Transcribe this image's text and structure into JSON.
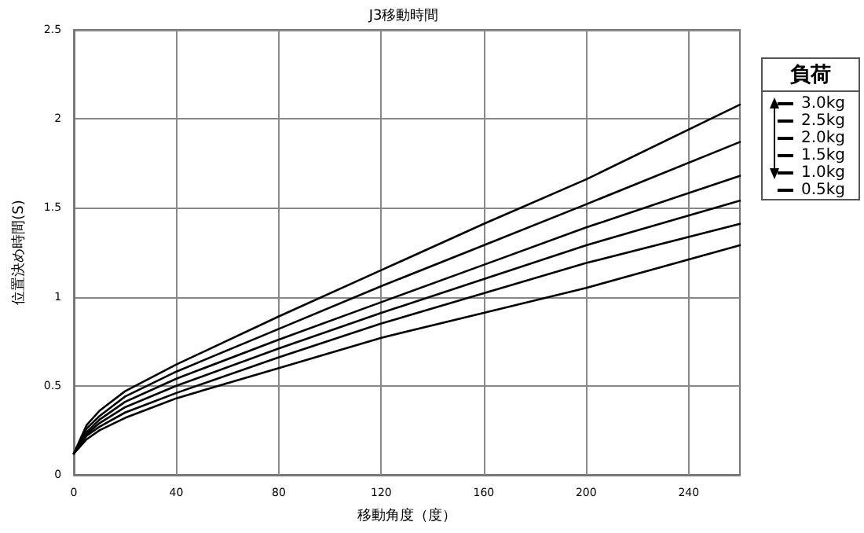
{
  "chart_data": {
    "type": "line",
    "title": "J3移動時間",
    "xlabel": "移動角度（度）",
    "ylabel": "位置決め時間(S)",
    "legend_title": "負荷",
    "x": [
      0,
      5,
      10,
      20,
      40,
      80,
      120,
      160,
      200,
      260
    ],
    "series": [
      {
        "name": "3.0kg",
        "color": "#000000",
        "values": [
          0.12,
          0.28,
          0.36,
          0.47,
          0.62,
          0.89,
          1.15,
          1.41,
          1.66,
          2.08
        ]
      },
      {
        "name": "2.5kg",
        "color": "#000000",
        "values": [
          0.12,
          0.26,
          0.33,
          0.44,
          0.58,
          0.82,
          1.06,
          1.29,
          1.52,
          1.87
        ]
      },
      {
        "name": "2.0kg",
        "color": "#000000",
        "values": [
          0.12,
          0.24,
          0.31,
          0.41,
          0.54,
          0.76,
          0.97,
          1.18,
          1.39,
          1.68
        ]
      },
      {
        "name": "1.5kg",
        "color": "#000000",
        "values": [
          0.12,
          0.23,
          0.29,
          0.38,
          0.5,
          0.71,
          0.91,
          1.1,
          1.29,
          1.54
        ]
      },
      {
        "name": "1.0kg",
        "color": "#000000",
        "values": [
          0.12,
          0.22,
          0.27,
          0.35,
          0.46,
          0.66,
          0.85,
          1.02,
          1.19,
          1.41
        ]
      },
      {
        "name": "0.5kg",
        "color": "#000000",
        "values": [
          0.12,
          0.2,
          0.25,
          0.32,
          0.43,
          0.6,
          0.77,
          0.91,
          1.05,
          1.29
        ]
      }
    ],
    "xlim": [
      0,
      260
    ],
    "xticks": [
      0,
      40,
      80,
      120,
      160,
      200,
      240
    ],
    "ylim": [
      0,
      2.5
    ],
    "yticks": [
      0,
      0.5,
      1,
      1.5,
      2,
      2.5
    ],
    "grid": true,
    "legend": "right",
    "marker": "none",
    "line_style": "solid"
  }
}
